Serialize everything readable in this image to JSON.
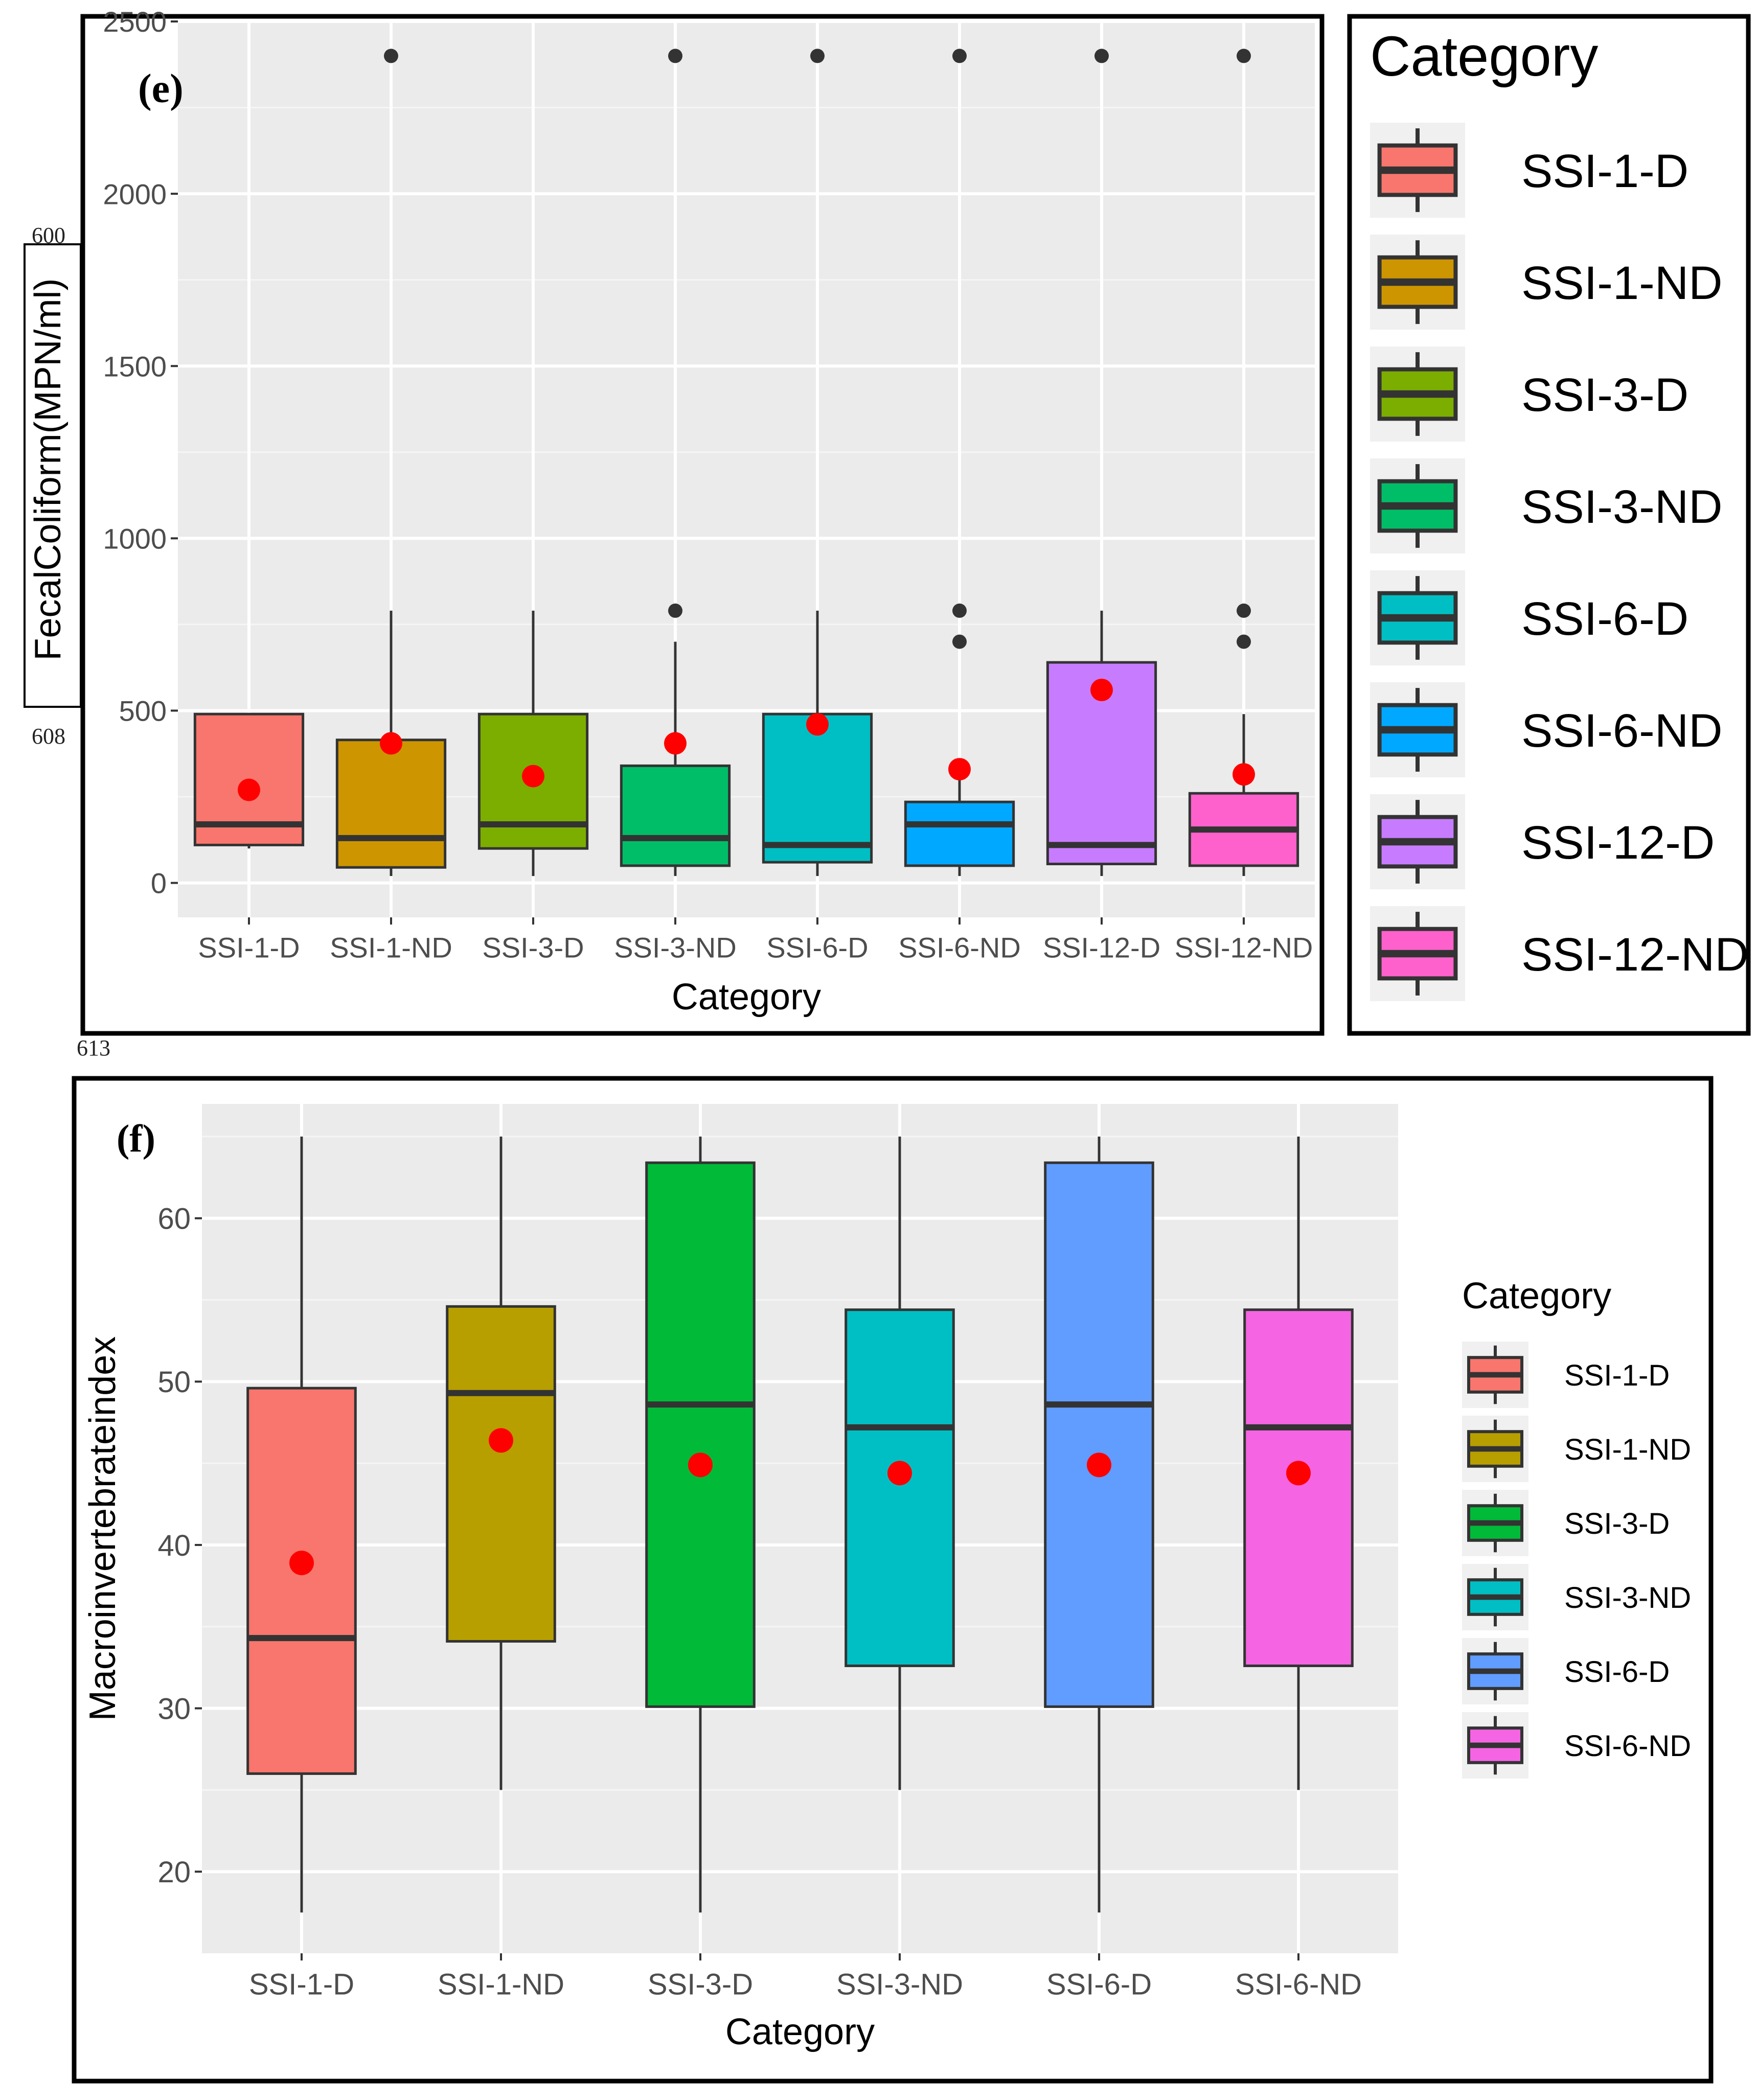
{
  "page_numbers": {
    "line_a": "600",
    "line_b": "608",
    "line_c": "613"
  },
  "chart_data": [
    {
      "type": "box",
      "panel_label": "(e)",
      "xlabel": "Category",
      "ylabel": "FecalColiform(MPN/ml)",
      "ylim": [
        -100,
        2500
      ],
      "yticks": [
        0,
        500,
        1000,
        1500,
        2000,
        2500
      ],
      "categories": [
        "SSI-1-D",
        "SSI-1-ND",
        "SSI-3-D",
        "SSI-3-ND",
        "SSI-6-D",
        "SSI-6-ND",
        "SSI-12-D",
        "SSI-12-ND"
      ],
      "colors": [
        "#F8766D",
        "#CD9600",
        "#7CAE00",
        "#00BE67",
        "#00BFC4",
        "#00A9FF",
        "#C77CFF",
        "#FF61CC"
      ],
      "boxes": [
        {
          "name": "SSI-1-D",
          "whisker_low": 100,
          "q1": 110,
          "median": 170,
          "q3": 490,
          "whisker_high": 490,
          "mean": 270,
          "outliers": []
        },
        {
          "name": "SSI-1-ND",
          "whisker_low": 20,
          "q1": 45,
          "median": 130,
          "q3": 415,
          "whisker_high": 790,
          "mean": 405,
          "outliers": [
            2400
          ]
        },
        {
          "name": "SSI-3-D",
          "whisker_low": 20,
          "q1": 100,
          "median": 170,
          "q3": 490,
          "whisker_high": 790,
          "mean": 310,
          "outliers": []
        },
        {
          "name": "SSI-3-ND",
          "whisker_low": 20,
          "q1": 50,
          "median": 130,
          "q3": 340,
          "whisker_high": 700,
          "mean": 405,
          "outliers": [
            790,
            2400
          ]
        },
        {
          "name": "SSI-6-D",
          "whisker_low": 20,
          "q1": 60,
          "median": 110,
          "q3": 490,
          "whisker_high": 790,
          "mean": 460,
          "outliers": [
            2400
          ]
        },
        {
          "name": "SSI-6-ND",
          "whisker_low": 20,
          "q1": 50,
          "median": 170,
          "q3": 235,
          "whisker_high": 330,
          "mean": 330,
          "outliers": [
            700,
            790,
            2400
          ]
        },
        {
          "name": "SSI-12-D",
          "whisker_low": 20,
          "q1": 55,
          "median": 110,
          "q3": 640,
          "whisker_high": 790,
          "mean": 560,
          "outliers": [
            2400
          ]
        },
        {
          "name": "SSI-12-ND",
          "whisker_low": 20,
          "q1": 50,
          "median": 155,
          "q3": 260,
          "whisker_high": 490,
          "mean": 315,
          "outliers": [
            700,
            790,
            2400
          ]
        }
      ],
      "legend": {
        "title": "Category",
        "placement": "right",
        "entries": [
          "SSI-1-D",
          "SSI-1-ND",
          "SSI-3-D",
          "SSI-3-ND",
          "SSI-6-D",
          "SSI-6-ND",
          "SSI-12-D",
          "SSI-12-ND"
        ]
      },
      "mean_marker_color": "#FF0000",
      "outlier_color": "#333333"
    },
    {
      "type": "box",
      "panel_label": "(f)",
      "xlabel": "Category",
      "ylabel": "Macroinvertebrateindex",
      "ylim": [
        15,
        67
      ],
      "yticks": [
        20,
        30,
        40,
        50,
        60
      ],
      "categories": [
        "SSI-1-D",
        "SSI-1-ND",
        "SSI-3-D",
        "SSI-3-ND",
        "SSI-6-D",
        "SSI-6-ND"
      ],
      "colors": [
        "#F8766D",
        "#B79F00",
        "#00BA38",
        "#00BFC4",
        "#619CFF",
        "#F564E3"
      ],
      "boxes": [
        {
          "name": "SSI-1-D",
          "whisker_low": 17.5,
          "q1": 26,
          "median": 34.3,
          "q3": 49.6,
          "whisker_high": 65,
          "mean": 38.9,
          "outliers": []
        },
        {
          "name": "SSI-1-ND",
          "whisker_low": 25,
          "q1": 34.1,
          "median": 49.3,
          "q3": 54.6,
          "whisker_high": 65,
          "mean": 46.4,
          "outliers": []
        },
        {
          "name": "SSI-3-D",
          "whisker_low": 17.5,
          "q1": 30.1,
          "median": 48.6,
          "q3": 63.4,
          "whisker_high": 65,
          "mean": 44.9,
          "outliers": []
        },
        {
          "name": "SSI-3-ND",
          "whisker_low": 25,
          "q1": 32.6,
          "median": 47.2,
          "q3": 54.4,
          "whisker_high": 65,
          "mean": 44.4,
          "outliers": []
        },
        {
          "name": "SSI-6-D",
          "whisker_low": 17.5,
          "q1": 30.1,
          "median": 48.6,
          "q3": 63.4,
          "whisker_high": 65,
          "mean": 44.9,
          "outliers": []
        },
        {
          "name": "SSI-6-ND",
          "whisker_low": 25,
          "q1": 32.6,
          "median": 47.2,
          "q3": 54.4,
          "whisker_high": 65,
          "mean": 44.4,
          "outliers": []
        }
      ],
      "legend": {
        "title": "Category",
        "placement": "right",
        "entries": [
          "SSI-1-D",
          "SSI-1-ND",
          "SSI-3-D",
          "SSI-3-ND",
          "SSI-6-D",
          "SSI-6-ND"
        ]
      },
      "mean_marker_color": "#FF0000",
      "outlier_color": "#333333"
    }
  ]
}
